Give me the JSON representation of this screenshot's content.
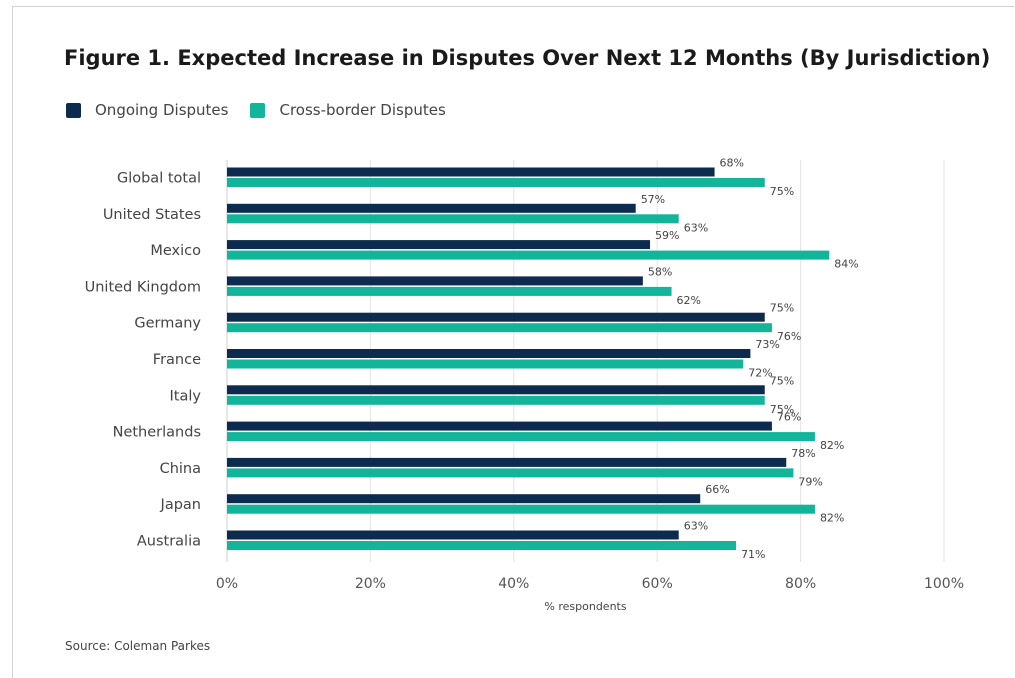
{
  "title": "Figure 1. Expected Increase in Disputes Over Next 12 Months (By Jurisdiction)",
  "source": "Source: Coleman Parkes",
  "colors": {
    "ongoing": "#0d2b4e",
    "crossborder": "#12b59a",
    "grid": "#e3e3e3"
  },
  "chart_data": {
    "type": "bar",
    "orientation": "horizontal",
    "title": "Figure 1. Expected Increase in Disputes Over Next 12 Months (By Jurisdiction)",
    "xlabel": "% respondents",
    "ylabel": "",
    "xlim": [
      0,
      100
    ],
    "xticks": [
      "0%",
      "20%",
      "40%",
      "60%",
      "80%",
      "100%"
    ],
    "xtick_values": [
      0,
      20,
      40,
      60,
      80,
      100
    ],
    "legend_position": "top-left",
    "grid": true,
    "categories": [
      "Global total",
      "United States",
      "Mexico",
      "United Kingdom",
      "Germany",
      "France",
      "Italy",
      "Netherlands",
      "China",
      "Japan",
      "Australia"
    ],
    "series": [
      {
        "name": "Ongoing Disputes",
        "values": [
          68,
          57,
          59,
          58,
          75,
          73,
          75,
          76,
          78,
          66,
          63
        ]
      },
      {
        "name": "Cross-border Disputes",
        "values": [
          75,
          63,
          84,
          62,
          76,
          72,
          75,
          82,
          79,
          82,
          71
        ]
      }
    ]
  }
}
